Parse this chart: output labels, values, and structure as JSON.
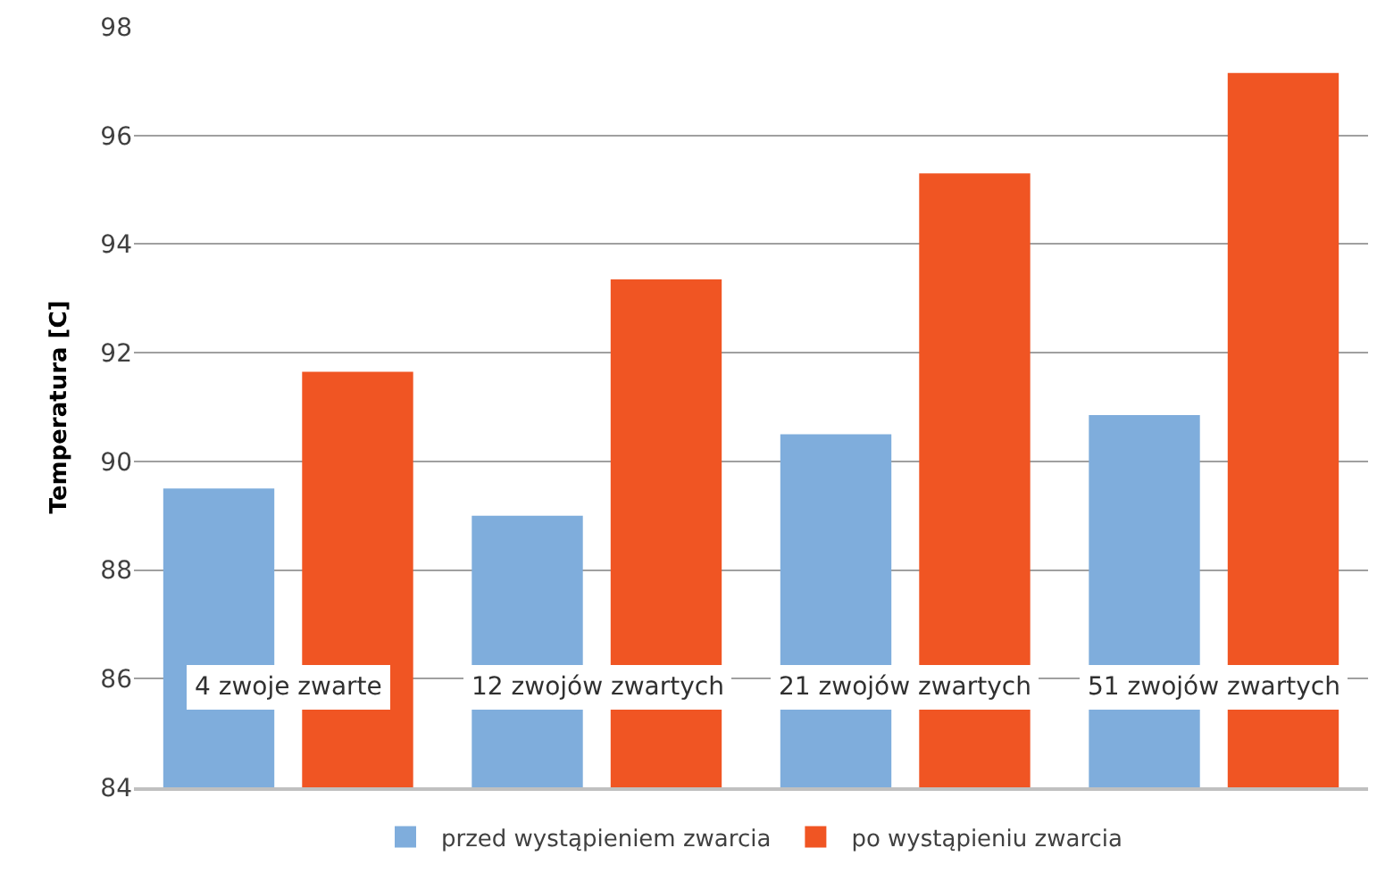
{
  "chart_data": {
    "type": "bar",
    "ylabel": "Temperatura [C]",
    "categories": [
      "4 zwoje zwarte",
      "12 zwojów zwartych",
      "21 zwojów zwartych",
      "51 zwojów zwartych"
    ],
    "series": [
      {
        "name": "przed wystąpieniem zwarcia",
        "color": "#7faddc",
        "values": [
          89.5,
          89.0,
          90.5,
          90.85
        ]
      },
      {
        "name": "po wystąpieniu zwarcia",
        "color": "#f05523",
        "values": [
          91.65,
          93.35,
          95.3,
          97.15
        ]
      }
    ],
    "ylim": [
      84,
      98
    ],
    "yticks": [
      84,
      86,
      88,
      90,
      92,
      94,
      96,
      98
    ],
    "grid": "y",
    "legend": "bottom"
  }
}
